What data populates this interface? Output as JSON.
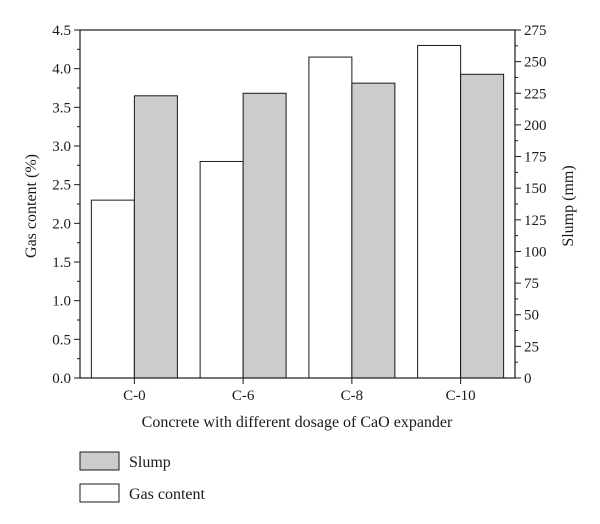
{
  "chart_data": {
    "type": "bar",
    "categories": [
      "C-0",
      "C-6",
      "C-8",
      "C-10"
    ],
    "series": [
      {
        "name": "Gas content",
        "axis": "left",
        "values": [
          2.3,
          2.8,
          4.15,
          4.3
        ],
        "color": "#ffffff"
      },
      {
        "name": "Slump",
        "axis": "right",
        "values": [
          223,
          225,
          233,
          240
        ],
        "color": "#cccccc"
      }
    ],
    "xlabel": "Concrete with different dosage of CaO expander",
    "ylabel": "Gas content (%)",
    "y2label": "Slump (mm)",
    "ylim": [
      0,
      4.5
    ],
    "y2lim": [
      0,
      275
    ],
    "yticks": [
      0.0,
      0.5,
      1.0,
      1.5,
      2.0,
      2.5,
      3.0,
      3.5,
      4.0,
      4.5
    ],
    "y2ticks": [
      0,
      25,
      50,
      75,
      100,
      125,
      150,
      175,
      200,
      225,
      250,
      275
    ],
    "grid": false,
    "legend": {
      "placement": "bottom-left",
      "entries": [
        {
          "name": "Slump",
          "color": "#cccccc"
        },
        {
          "name": "Gas content",
          "color": "#ffffff"
        }
      ]
    }
  }
}
